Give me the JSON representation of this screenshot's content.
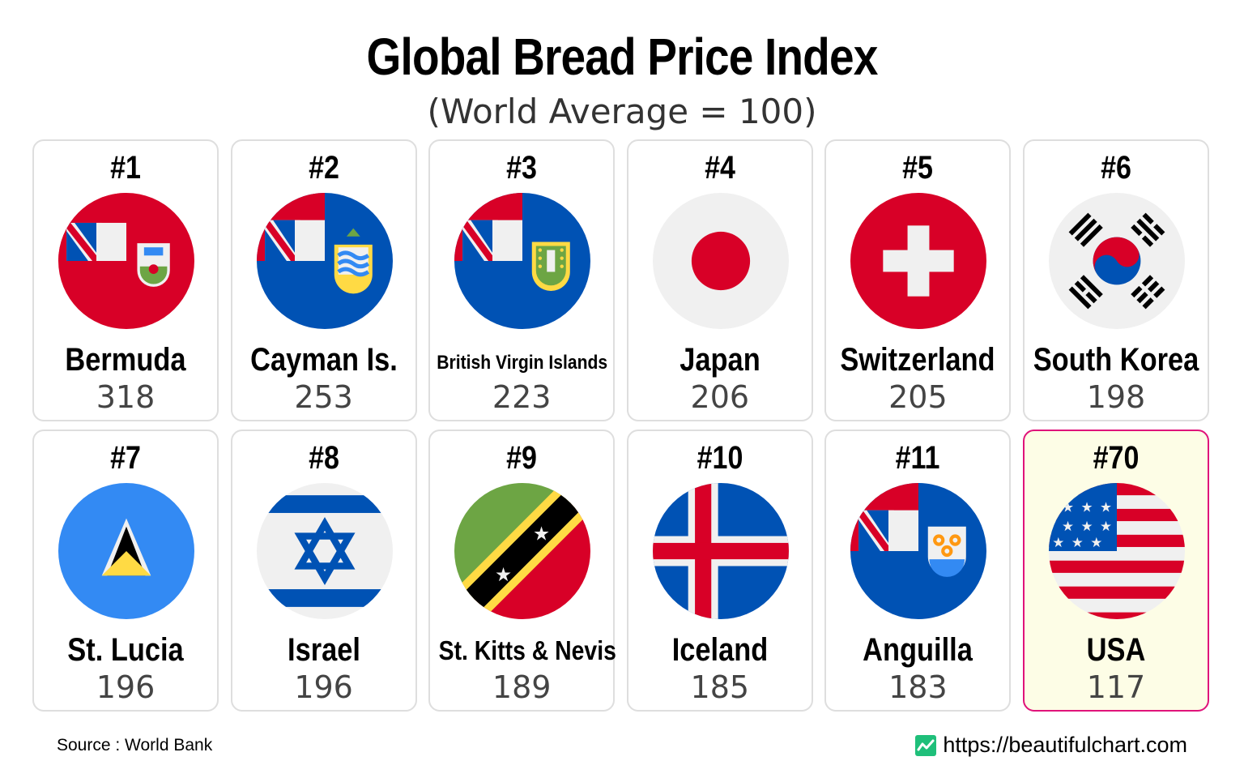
{
  "title": "Global Bread Price Index",
  "subtitle": "(World Average = 100)",
  "source": "Source : World Bank",
  "site": "https://beautifulchart.com",
  "site_icon": "chart-logo-icon",
  "colors": {
    "highlight_border": "#e0137a",
    "highlight_bg": "#fdfde6",
    "card_border": "#dedede",
    "logo_green": "#1fbf7a"
  },
  "chart_data": {
    "type": "table",
    "title": "Global Bread Price Index",
    "subtitle": "(World Average = 100)",
    "columns": [
      "rank",
      "country",
      "index"
    ],
    "rows": [
      {
        "rank": "#1",
        "country": "Bermuda",
        "value": "318",
        "flag": "bermuda-flag-icon"
      },
      {
        "rank": "#2",
        "country": "Cayman Is.",
        "value": "253",
        "flag": "cayman-islands-flag-icon"
      },
      {
        "rank": "#3",
        "country": "British Virgin Islands",
        "value": "223",
        "flag": "british-virgin-islands-flag-icon"
      },
      {
        "rank": "#4",
        "country": "Japan",
        "value": "206",
        "flag": "japan-flag-icon"
      },
      {
        "rank": "#5",
        "country": "Switzerland",
        "value": "205",
        "flag": "switzerland-flag-icon"
      },
      {
        "rank": "#6",
        "country": "South Korea",
        "value": "198",
        "flag": "south-korea-flag-icon"
      },
      {
        "rank": "#7",
        "country": "St. Lucia",
        "value": "196",
        "flag": "st-lucia-flag-icon"
      },
      {
        "rank": "#8",
        "country": "Israel",
        "value": "196",
        "flag": "israel-flag-icon"
      },
      {
        "rank": "#9",
        "country": "St. Kitts & Nevis",
        "value": "189",
        "flag": "st-kitts-nevis-flag-icon"
      },
      {
        "rank": "#10",
        "country": "Iceland",
        "value": "185",
        "flag": "iceland-flag-icon"
      },
      {
        "rank": "#11",
        "country": "Anguilla",
        "value": "183",
        "flag": "anguilla-flag-icon"
      },
      {
        "rank": "#70",
        "country": "USA",
        "value": "117",
        "flag": "usa-flag-icon",
        "highlighted": true
      }
    ]
  }
}
